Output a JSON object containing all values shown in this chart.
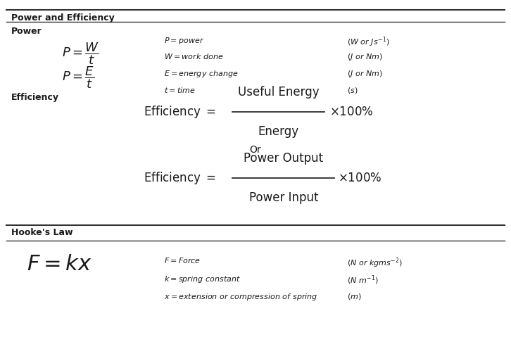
{
  "bg_color": "#ffffff",
  "text_color": "#1a1a1a",
  "section1_title": "Power and Efficiency",
  "section2_title": "Power",
  "section3_title": "Efficiency",
  "section4_title": "Hooke's Law",
  "formula1a_lhs": "$P = \\dfrac{W}{t}$",
  "formula1b_lhs": "$P = \\dfrac{E}{t}$",
  "vars1": [
    "$P = power$",
    "$W = work\\; done$",
    "$E = energy\\; change$",
    "$t = time$"
  ],
  "units1": [
    "$(W\\; or\\; Js^{-1})$",
    "$(J\\; or\\; Nm)$",
    "$(J\\; or\\; Nm)$",
    "$(s)$"
  ],
  "efficiency1_lhs": "Efficiency = ",
  "efficiency1_num": "Useful Energy",
  "efficiency1_den": "Energy",
  "efficiency1_rhs": "$\\times 100\\%$",
  "or_text": "Or",
  "efficiency2_lhs": "Efficiency = ",
  "efficiency2_num": "Power Output",
  "efficiency2_den": "Power Input",
  "efficiency2_rhs": "$\\times 100\\%$",
  "hooke_formula": "$F = kx$",
  "vars4": [
    "$F = Force$",
    "$k = spring\\; constant$",
    "$x = extension\\; or\\; compression\\; of\\; spring$"
  ],
  "units4": [
    "$(N\\; or\\; kgms^{-2})$",
    "$(N\\; m^{-1})$",
    "$(m)$"
  ]
}
